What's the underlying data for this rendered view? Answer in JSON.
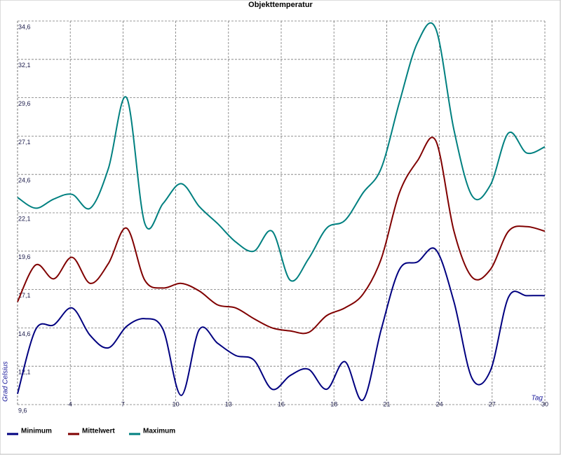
{
  "chart_data": {
    "type": "line",
    "title": "Objekttemperatur",
    "y_label": "Grad Celsius",
    "x_label": "Tag",
    "x": [
      1,
      2,
      3,
      4,
      5,
      6,
      7,
      8,
      9,
      10,
      11,
      12,
      13,
      14,
      15,
      16,
      17,
      18,
      19,
      20,
      21,
      22,
      23,
      24,
      25,
      26,
      27,
      28,
      29,
      30
    ],
    "series": [
      {
        "name": "Minimum",
        "color": "#000080",
        "values": [
          10.3,
          14.5,
          14.8,
          15.9,
          14.1,
          13.3,
          14.7,
          15.2,
          14.5,
          10.2,
          14.5,
          13.6,
          12.8,
          12.5,
          10.6,
          11.5,
          11.9,
          10.6,
          12.4,
          9.9,
          14.5,
          18.4,
          18.9,
          19.7,
          16.3,
          11.3,
          11.8,
          16.6,
          16.7,
          16.7
        ]
      },
      {
        "name": "Mittelwert",
        "color": "#800000",
        "values": [
          16.3,
          18.7,
          17.8,
          19.2,
          17.5,
          18.8,
          21.1,
          17.7,
          17.2,
          17.5,
          17.0,
          16.1,
          15.9,
          15.2,
          14.6,
          14.4,
          14.3,
          15.4,
          15.9,
          16.8,
          19.1,
          23.4,
          25.5,
          26.8,
          20.9,
          17.9,
          18.4,
          20.9,
          21.2,
          20.9
        ]
      },
      {
        "name": "Maximum",
        "color": "#008080",
        "values": [
          23.1,
          22.4,
          23.0,
          23.3,
          22.4,
          25.0,
          29.6,
          21.4,
          22.7,
          24.0,
          22.5,
          21.4,
          20.2,
          19.6,
          20.9,
          17.7,
          19.1,
          21.1,
          21.6,
          23.4,
          25.0,
          29.3,
          33.2,
          34.1,
          27.5,
          23.2,
          23.9,
          27.3,
          26.0,
          26.4
        ]
      }
    ],
    "xlim": [
      1,
      30
    ],
    "xticks": [
      {
        "value": 3.9,
        "label": "4"
      },
      {
        "value": 6.8,
        "label": "7"
      },
      {
        "value": 9.7,
        "label": "10"
      },
      {
        "value": 12.6,
        "label": "13"
      },
      {
        "value": 15.5,
        "label": "16"
      },
      {
        "value": 18.4,
        "label": "18"
      },
      {
        "value": 21.3,
        "label": "21"
      },
      {
        "value": 24.2,
        "label": "24"
      },
      {
        "value": 27.1,
        "label": "27"
      },
      {
        "value": 30,
        "label": "30"
      }
    ],
    "ylim": [
      9.6,
      34.6
    ],
    "yticks": [
      {
        "value": 9.6,
        "label": "9,6"
      },
      {
        "value": 12.1,
        "label": "12,1"
      },
      {
        "value": 14.6,
        "label": "14,6"
      },
      {
        "value": 17.1,
        "label": "17,1"
      },
      {
        "value": 19.6,
        "label": "19,6"
      },
      {
        "value": 22.1,
        "label": "22,1"
      },
      {
        "value": 24.6,
        "label": "24,6"
      },
      {
        "value": 27.1,
        "label": "27,1"
      },
      {
        "value": 29.6,
        "label": "29,6"
      },
      {
        "value": 32.1,
        "label": "32,1"
      },
      {
        "value": 34.6,
        "label": "34,6"
      }
    ],
    "grid": true,
    "legend": "bottom-left"
  }
}
